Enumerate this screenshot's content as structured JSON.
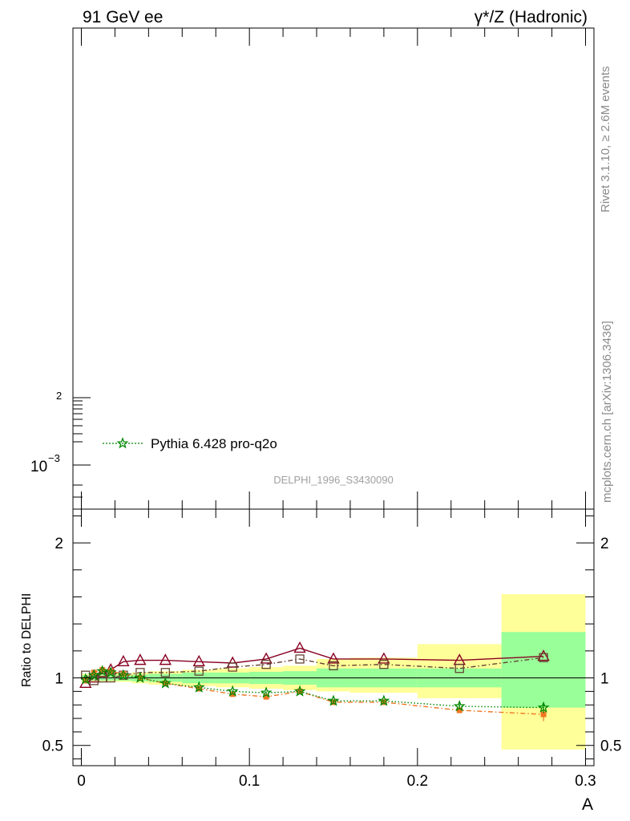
{
  "header": {
    "left_title": "91 GeV ee",
    "right_title": "γ*/Z (Hadronic)",
    "side_label_top": "Rivet 3.1.10, ≥ 2.6M events",
    "side_label_bottom": "mcplots.cern.ch [arXiv:1306.3436]",
    "analysis_ref": "DELPHI_1996_S3430090"
  },
  "legend": {
    "entries": [
      {
        "label": "Pythia 6.428 pro-q2o",
        "color": "#008800",
        "marker": "star"
      }
    ]
  },
  "chart_data": [
    {
      "type": "line",
      "panel": "main",
      "yscale": "log",
      "xlim": [
        -0.005,
        0.305
      ],
      "ytick_labels": [
        "2",
        "10",
        "−3"
      ]
    },
    {
      "type": "line",
      "panel": "ratio",
      "ylabel": "Ratio to DELPHI",
      "xlabel": "A",
      "xlim": [
        -0.005,
        0.305
      ],
      "ylim": [
        0.35,
        2.25
      ],
      "xticks": [
        0,
        0.1,
        0.2,
        0.3
      ],
      "xtick_labels": [
        "0",
        "0.1",
        "0.2",
        "0.3"
      ],
      "yticks": [
        0.5,
        1,
        2
      ],
      "ytick_labels": [
        "0.5",
        "1",
        "2"
      ],
      "reference_line": 1,
      "bands": {
        "bins": [
          [
            0,
            0.005
          ],
          [
            0.005,
            0.01
          ],
          [
            0.01,
            0.015
          ],
          [
            0.015,
            0.02
          ],
          [
            0.02,
            0.03
          ],
          [
            0.03,
            0.04
          ],
          [
            0.04,
            0.06
          ],
          [
            0.06,
            0.08
          ],
          [
            0.08,
            0.1
          ],
          [
            0.1,
            0.12
          ],
          [
            0.12,
            0.14
          ],
          [
            0.14,
            0.16
          ],
          [
            0.16,
            0.2
          ],
          [
            0.2,
            0.25
          ],
          [
            0.25,
            0.3
          ]
        ],
        "inner": [
          [
            0.98,
            1.02
          ],
          [
            0.98,
            1.02
          ],
          [
            0.98,
            1.02
          ],
          [
            0.98,
            1.02
          ],
          [
            0.98,
            1.02
          ],
          [
            0.975,
            1.025
          ],
          [
            0.97,
            1.03
          ],
          [
            0.96,
            1.04
          ],
          [
            0.96,
            1.04
          ],
          [
            0.955,
            1.045
          ],
          [
            0.95,
            1.05
          ],
          [
            0.93,
            1.07
          ],
          [
            0.93,
            1.07
          ],
          [
            0.93,
            1.07
          ],
          [
            0.78,
            1.34
          ]
        ],
        "outer": [
          [
            0.97,
            1.03
          ],
          [
            0.97,
            1.03
          ],
          [
            0.97,
            1.03
          ],
          [
            0.97,
            1.03
          ],
          [
            0.97,
            1.03
          ],
          [
            0.96,
            1.04
          ],
          [
            0.95,
            1.05
          ],
          [
            0.94,
            1.06
          ],
          [
            0.93,
            1.07
          ],
          [
            0.92,
            1.08
          ],
          [
            0.91,
            1.09
          ],
          [
            0.9,
            1.14
          ],
          [
            0.89,
            1.15
          ],
          [
            0.85,
            1.25
          ],
          [
            0.47,
            1.62
          ]
        ],
        "inner_color": "#99ff99",
        "outer_color": "#ffff99"
      },
      "series": [
        {
          "color": "#880022",
          "marker": "triangle",
          "line": "solid",
          "x": [
            0.0025,
            0.0075,
            0.0125,
            0.0175,
            0.025,
            0.035,
            0.05,
            0.07,
            0.09,
            0.11,
            0.13,
            0.15,
            0.18,
            0.225,
            0.275
          ],
          "y": [
            0.96,
            1.0,
            1.04,
            1.06,
            1.12,
            1.13,
            1.13,
            1.12,
            1.11,
            1.14,
            1.22,
            1.14,
            1.14,
            1.13,
            1.16
          ]
        },
        {
          "color": "#664433",
          "marker": "square",
          "line": "dashdot",
          "x": [
            0.0025,
            0.0075,
            0.0125,
            0.0175,
            0.025,
            0.035,
            0.05,
            0.07,
            0.09,
            0.11,
            0.13,
            0.15,
            0.18,
            0.225,
            0.275
          ],
          "y": [
            1.02,
            0.98,
            1.0,
            1.0,
            1.02,
            1.04,
            1.04,
            1.05,
            1.08,
            1.1,
            1.14,
            1.09,
            1.1,
            1.07,
            1.15
          ]
        },
        {
          "color": "#ee7722",
          "marker": "filled-square",
          "line": "dashdot",
          "x": [
            0.0025,
            0.0075,
            0.0125,
            0.0175,
            0.025,
            0.035,
            0.05,
            0.07,
            0.09,
            0.11,
            0.13,
            0.15,
            0.18,
            0.225,
            0.275
          ],
          "y": [
            0.98,
            1.04,
            1.06,
            1.05,
            1.03,
            1.0,
            0.96,
            0.92,
            0.88,
            0.86,
            0.9,
            0.82,
            0.82,
            0.76,
            0.73
          ],
          "yerr": [
            0.01,
            0.01,
            0.01,
            0.01,
            0.01,
            0.01,
            0.01,
            0.01,
            0.01,
            0.01,
            0.01,
            0.01,
            0.01,
            0.02,
            0.05
          ]
        },
        {
          "name": "Pythia 6.428 pro-q2o",
          "color": "#008800",
          "marker": "star",
          "line": "dotted",
          "x": [
            0.0025,
            0.0075,
            0.0125,
            0.0175,
            0.025,
            0.035,
            0.05,
            0.07,
            0.09,
            0.11,
            0.13,
            0.15,
            0.18,
            0.225,
            0.275
          ],
          "y": [
            0.99,
            1.02,
            1.05,
            1.04,
            1.02,
            1.0,
            0.96,
            0.93,
            0.9,
            0.89,
            0.9,
            0.83,
            0.83,
            0.79,
            0.78
          ],
          "yerr": [
            0.01,
            0.01,
            0.01,
            0.01,
            0.01,
            0.01,
            0.01,
            0.01,
            0.01,
            0.01,
            0.01,
            0.01,
            0.01,
            0.02,
            0.04
          ]
        }
      ]
    }
  ]
}
